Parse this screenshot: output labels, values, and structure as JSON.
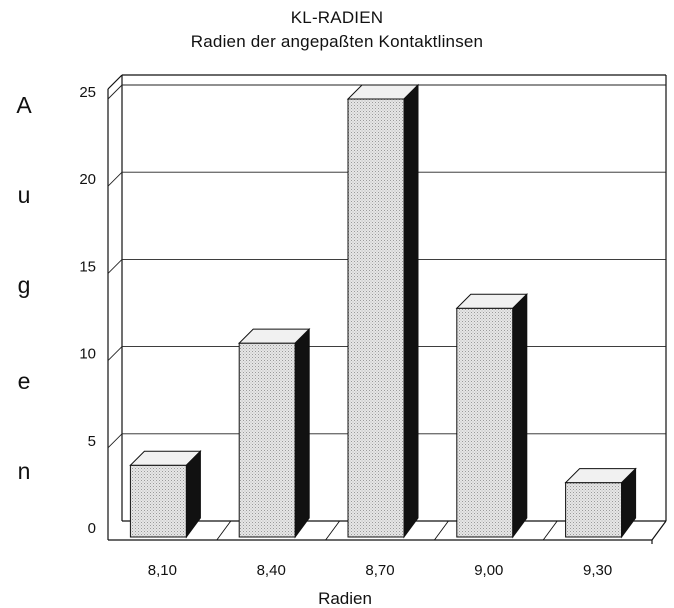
{
  "chart_data": {
    "type": "bar",
    "title": "KL-RADIEN",
    "subtitle": "Radien der angepaßten Kontaktlinsen",
    "xlabel": "Radien",
    "ylabel_letters": [
      "A",
      "u",
      "g",
      "e",
      "n"
    ],
    "categories": [
      "8,10",
      "8,40",
      "8,70",
      "9,00",
      "9,30"
    ],
    "values": [
      4,
      11,
      25,
      13,
      3
    ],
    "yticks": [
      "0",
      "5",
      "10",
      "15",
      "20",
      "25"
    ],
    "ylim": [
      0,
      25
    ],
    "grid": true,
    "style": "3d",
    "colors": {
      "bar_front": "#e3e3e3",
      "bar_top": "#f1f1f1",
      "bar_side": "#111111"
    }
  }
}
